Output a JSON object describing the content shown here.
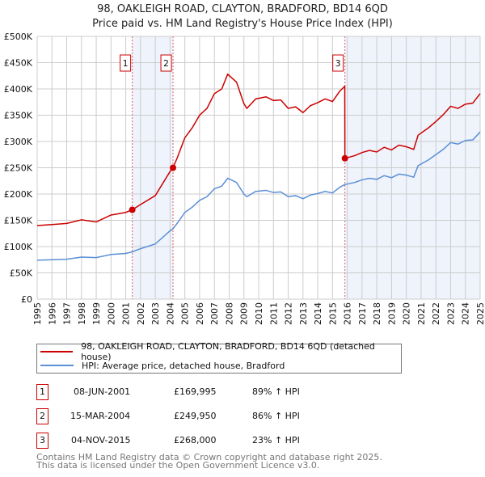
{
  "chart_data": {
    "type": "line",
    "title": "98, OAKLEIGH ROAD, CLAYTON, BRADFORD, BD14 6QD",
    "subtitle": "Price paid vs. HM Land Registry's House Price Index (HPI)",
    "xlim": [
      1995,
      2025
    ],
    "ylim": [
      0,
      500000
    ],
    "grid": true,
    "y_ticks": [
      {
        "v": 0,
        "label": "£0"
      },
      {
        "v": 50000,
        "label": "£50K"
      },
      {
        "v": 100000,
        "label": "£100K"
      },
      {
        "v": 150000,
        "label": "£150K"
      },
      {
        "v": 200000,
        "label": "£200K"
      },
      {
        "v": 250000,
        "label": "£250K"
      },
      {
        "v": 300000,
        "label": "£300K"
      },
      {
        "v": 350000,
        "label": "£350K"
      },
      {
        "v": 400000,
        "label": "£400K"
      },
      {
        "v": 450000,
        "label": "£450K"
      },
      {
        "v": 500000,
        "label": "£500K"
      }
    ],
    "x_ticks": [
      "1995",
      "1996",
      "1997",
      "1998",
      "1999",
      "2000",
      "2001",
      "2002",
      "2003",
      "2004",
      "2005",
      "2006",
      "2007",
      "2008",
      "2009",
      "2010",
      "2011",
      "2012",
      "2013",
      "2014",
      "2015",
      "2016",
      "2017",
      "2018",
      "2019",
      "2020",
      "2021",
      "2022",
      "2023",
      "2024",
      "2025"
    ],
    "x": [
      1995,
      1996,
      1997,
      1998,
      1999,
      2000,
      2001,
      2001.44,
      2002,
      2003,
      2004,
      2004.2,
      2004.5,
      2005,
      2005.5,
      2006,
      2006.5,
      2007,
      2007.5,
      2007.9,
      2008.5,
      2009,
      2009.2,
      2009.8,
      2010.5,
      2011,
      2011.5,
      2012,
      2012.5,
      2013,
      2013.5,
      2014,
      2014.5,
      2015,
      2015.5,
      2015.83,
      2015.84,
      2016.5,
      2017,
      2017.5,
      2018,
      2018.5,
      2019,
      2019.5,
      2020,
      2020.5,
      2020.8,
      2021.5,
      2022,
      2022.5,
      2023,
      2023.5,
      2024,
      2024.5,
      2025
    ],
    "series": [
      {
        "name": "98, OAKLEIGH ROAD, CLAYTON, BRADFORD, BD14 6QD (detached house)",
        "color": "#cc0000",
        "values": [
          140000,
          142000,
          144000,
          151000,
          147000,
          160000,
          165000,
          169995,
          180000,
          197000,
          243000,
          249950,
          270000,
          307000,
          326000,
          350000,
          363000,
          391000,
          400000,
          428000,
          413000,
          372000,
          363000,
          381000,
          385000,
          378000,
          379000,
          363000,
          366000,
          355000,
          368000,
          374000,
          381000,
          376000,
          396000,
          405000,
          268000,
          273000,
          279000,
          283000,
          280000,
          289000,
          284000,
          293000,
          290000,
          285000,
          312000,
          326000,
          338000,
          351000,
          367000,
          363000,
          371000,
          373000,
          391000
        ]
      },
      {
        "name": "HPI: Average price, detached house, Bradford",
        "color": "#5b8fd6",
        "values": [
          74000,
          75000,
          76000,
          80000,
          79000,
          85000,
          87000,
          90000,
          96000,
          105000,
          130000,
          134000,
          145000,
          165000,
          175000,
          188000,
          195000,
          210000,
          215000,
          230000,
          222000,
          200000,
          195000,
          205000,
          207000,
          203000,
          204000,
          195000,
          197000,
          191000,
          198000,
          201000,
          205000,
          202000,
          213000,
          218000,
          218000,
          222000,
          227000,
          230000,
          228000,
          235000,
          231000,
          238000,
          236000,
          232000,
          254000,
          265000,
          275000,
          285000,
          298000,
          295000,
          302000,
          303000,
          318000
        ]
      }
    ],
    "sales": [
      {
        "n": "1",
        "x": 2001.44,
        "date": "08-JUN-2001",
        "price": 169995,
        "price_label": "£169,995",
        "hpi": "89% ↑ HPI"
      },
      {
        "n": "2",
        "x": 2004.2,
        "date": "15-MAR-2004",
        "price": 249950,
        "price_label": "£249,950",
        "hpi": "86% ↑ HPI"
      },
      {
        "n": "3",
        "x": 2015.84,
        "date": "04-NOV-2015",
        "price": 268000,
        "price_label": "£268,000",
        "hpi": "23% ↑ HPI"
      }
    ],
    "shaded_ranges": [
      [
        2001.44,
        2004.2
      ],
      [
        2015.84,
        2025
      ]
    ],
    "legend_position": "below"
  },
  "footer": {
    "line1": "Contains HM Land Registry data © Crown copyright and database right 2025.",
    "line2": "This data is licensed under the Open Government Licence v3.0."
  }
}
